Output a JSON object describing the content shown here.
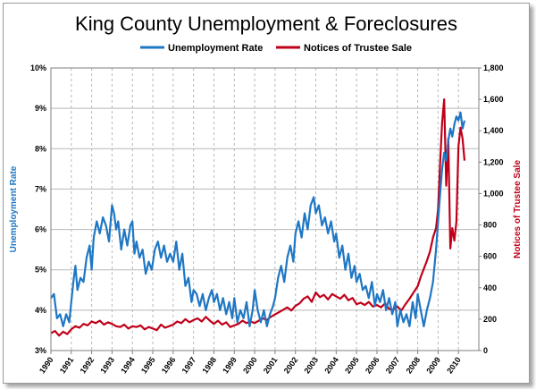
{
  "colors": {
    "unemployment": "#1f77c4",
    "trustee": "#c0001a",
    "grid": "#b8b8b8",
    "axis": "#7f7f7f"
  },
  "chart_data": {
    "type": "line",
    "title": "King County Unemployment & Foreclosures",
    "legend_position": "top",
    "grid": {
      "horizontal": true,
      "vertical": true,
      "vertical_style": "dashed"
    },
    "x_tick_labels": [
      "1990",
      "1991",
      "1992",
      "1993",
      "1994",
      "1995",
      "1996",
      "1997",
      "1998",
      "1999",
      "2000",
      "2001",
      "2002",
      "2003",
      "2004",
      "2005",
      "2006",
      "2007",
      "2008",
      "2009",
      "2010"
    ],
    "xlim": [
      1990,
      2011
    ],
    "y_left": {
      "label": "Unemployment Rate",
      "range": [
        3,
        10
      ],
      "tick_labels": [
        "3%",
        "4%",
        "5%",
        "6%",
        "7%",
        "8%",
        "9%",
        "10%"
      ]
    },
    "y_right": {
      "label": "Notices of Trustee Sale",
      "range": [
        0,
        1800
      ],
      "tick_labels": [
        "0",
        "200",
        "400",
        "600",
        "800",
        "1,000",
        "1,200",
        "1,400",
        "1,600",
        "1,800"
      ]
    },
    "series": [
      {
        "name": "Unemployment Rate",
        "axis": "left",
        "x": [
          1990.0,
          1990.15,
          1990.3,
          1990.45,
          1990.6,
          1990.75,
          1990.9,
          1991.0,
          1991.1,
          1991.2,
          1991.3,
          1991.45,
          1991.6,
          1991.75,
          1991.9,
          1992.0,
          1992.1,
          1992.25,
          1992.4,
          1992.55,
          1992.7,
          1992.85,
          1993.0,
          1993.1,
          1993.2,
          1993.3,
          1993.45,
          1993.6,
          1993.75,
          1993.9,
          1994.0,
          1994.1,
          1994.2,
          1994.35,
          1994.5,
          1994.65,
          1994.8,
          1994.95,
          1995.1,
          1995.25,
          1995.4,
          1995.55,
          1995.7,
          1995.85,
          1996.0,
          1996.15,
          1996.3,
          1996.45,
          1996.6,
          1996.75,
          1996.9,
          1997.0,
          1997.15,
          1997.3,
          1997.45,
          1997.6,
          1997.75,
          1997.9,
          1998.0,
          1998.15,
          1998.3,
          1998.45,
          1998.6,
          1998.75,
          1998.9,
          1999.0,
          1999.15,
          1999.3,
          1999.45,
          1999.6,
          1999.75,
          1999.9,
          2000.0,
          2000.15,
          2000.3,
          2000.45,
          2000.6,
          2000.75,
          2000.9,
          2001.0,
          2001.15,
          2001.3,
          2001.45,
          2001.6,
          2001.75,
          2001.9,
          2002.0,
          2002.15,
          2002.3,
          2002.45,
          2002.6,
          2002.75,
          2002.9,
          2003.0,
          2003.15,
          2003.3,
          2003.45,
          2003.6,
          2003.75,
          2003.9,
          2004.0,
          2004.15,
          2004.3,
          2004.45,
          2004.6,
          2004.75,
          2004.9,
          2005.0,
          2005.15,
          2005.3,
          2005.45,
          2005.6,
          2005.75,
          2005.9,
          2006.0,
          2006.15,
          2006.3,
          2006.45,
          2006.6,
          2006.75,
          2006.9,
          2007.0,
          2007.15,
          2007.3,
          2007.45,
          2007.6,
          2007.75,
          2007.9,
          2008.0,
          2008.15,
          2008.3,
          2008.45,
          2008.6,
          2008.75,
          2008.9,
          2009.0,
          2009.1,
          2009.2,
          2009.3,
          2009.4,
          2009.5,
          2009.6,
          2009.7,
          2009.8,
          2009.9,
          2010.0,
          2010.1,
          2010.2,
          2010.3
        ],
        "values": [
          4.3,
          4.4,
          3.8,
          3.9,
          3.6,
          3.9,
          3.7,
          4.2,
          4.7,
          5.1,
          4.5,
          4.8,
          4.7,
          5.3,
          5.6,
          5.0,
          5.8,
          6.2,
          5.9,
          6.3,
          6.1,
          5.7,
          6.6,
          6.4,
          6.0,
          6.2,
          5.5,
          6.0,
          5.6,
          6.1,
          6.2,
          5.4,
          5.7,
          5.3,
          5.5,
          4.9,
          5.2,
          5.0,
          5.5,
          5.7,
          5.3,
          5.6,
          5.2,
          5.4,
          5.2,
          5.7,
          5.0,
          5.4,
          4.6,
          4.8,
          4.2,
          4.5,
          4.4,
          4.1,
          4.4,
          4.0,
          4.3,
          4.5,
          4.2,
          4.4,
          4.0,
          4.3,
          3.9,
          4.2,
          3.8,
          4.3,
          3.7,
          4.0,
          3.8,
          4.2,
          3.6,
          4.0,
          4.5,
          4.0,
          3.7,
          4.0,
          3.6,
          3.9,
          4.1,
          4.3,
          4.8,
          5.1,
          4.7,
          5.3,
          5.6,
          5.2,
          5.9,
          6.2,
          5.8,
          6.4,
          6.0,
          6.6,
          6.8,
          6.4,
          6.6,
          6.1,
          6.3,
          5.9,
          6.2,
          5.7,
          5.9,
          5.3,
          5.6,
          5.0,
          5.4,
          4.8,
          5.1,
          4.7,
          4.9,
          4.5,
          4.6,
          4.3,
          4.7,
          4.1,
          4.4,
          4.2,
          4.5,
          4.0,
          4.3,
          3.9,
          4.2,
          3.6,
          4.0,
          3.7,
          3.9,
          3.6,
          4.2,
          3.8,
          4.4,
          4.0,
          3.6,
          4.0,
          4.3,
          4.7,
          5.5,
          6.2,
          6.9,
          7.5,
          7.9,
          7.7,
          8.2,
          8.5,
          8.3,
          8.6,
          8.8,
          8.7,
          8.9,
          8.5,
          8.7
        ]
      },
      {
        "name": "Notices of Trustee Sale",
        "axis": "right",
        "x": [
          1990.0,
          1990.2,
          1990.4,
          1990.6,
          1990.8,
          1991.0,
          1991.2,
          1991.4,
          1991.6,
          1991.8,
          1992.0,
          1992.2,
          1992.4,
          1992.6,
          1992.8,
          1993.0,
          1993.2,
          1993.4,
          1993.6,
          1993.8,
          1994.0,
          1994.2,
          1994.4,
          1994.6,
          1994.8,
          1995.0,
          1995.2,
          1995.4,
          1995.6,
          1995.8,
          1996.0,
          1996.2,
          1996.4,
          1996.6,
          1996.8,
          1997.0,
          1997.2,
          1997.4,
          1997.6,
          1997.8,
          1998.0,
          1998.2,
          1998.4,
          1998.6,
          1998.8,
          1999.0,
          1999.2,
          1999.4,
          1999.6,
          1999.8,
          2000.0,
          2000.2,
          2000.4,
          2000.6,
          2000.8,
          2001.0,
          2001.2,
          2001.4,
          2001.6,
          2001.8,
          2002.0,
          2002.2,
          2002.4,
          2002.6,
          2002.8,
          2003.0,
          2003.2,
          2003.4,
          2003.6,
          2003.8,
          2004.0,
          2004.2,
          2004.4,
          2004.6,
          2004.8,
          2005.0,
          2005.2,
          2005.4,
          2005.6,
          2005.8,
          2006.0,
          2006.2,
          2006.4,
          2006.6,
          2006.8,
          2007.0,
          2007.2,
          2007.4,
          2007.6,
          2007.8,
          2008.0,
          2008.15,
          2008.3,
          2008.45,
          2008.6,
          2008.75,
          2008.9,
          2009.0,
          2009.1,
          2009.2,
          2009.3,
          2009.4,
          2009.5,
          2009.6,
          2009.7,
          2009.8,
          2009.9,
          2010.0,
          2010.1,
          2010.2,
          2010.3
        ],
        "values": [
          110,
          125,
          95,
          120,
          105,
          135,
          155,
          145,
          170,
          160,
          185,
          175,
          190,
          165,
          180,
          170,
          155,
          150,
          165,
          140,
          155,
          150,
          160,
          135,
          150,
          140,
          130,
          165,
          145,
          155,
          165,
          185,
          175,
          200,
          180,
          195,
          205,
          185,
          215,
          190,
          170,
          190,
          165,
          180,
          150,
          160,
          170,
          190,
          175,
          185,
          175,
          190,
          205,
          195,
          215,
          230,
          245,
          260,
          275,
          255,
          285,
          300,
          330,
          345,
          310,
          370,
          340,
          355,
          325,
          360,
          345,
          330,
          355,
          320,
          335,
          295,
          305,
          290,
          310,
          280,
          290,
          275,
          300,
          265,
          260,
          280,
          255,
          295,
          330,
          370,
          410,
          470,
          520,
          570,
          630,
          720,
          780,
          900,
          1200,
          1450,
          1600,
          1050,
          1350,
          650,
          780,
          700,
          820,
          1300,
          1420,
          1350,
          1210
        ]
      }
    ]
  }
}
